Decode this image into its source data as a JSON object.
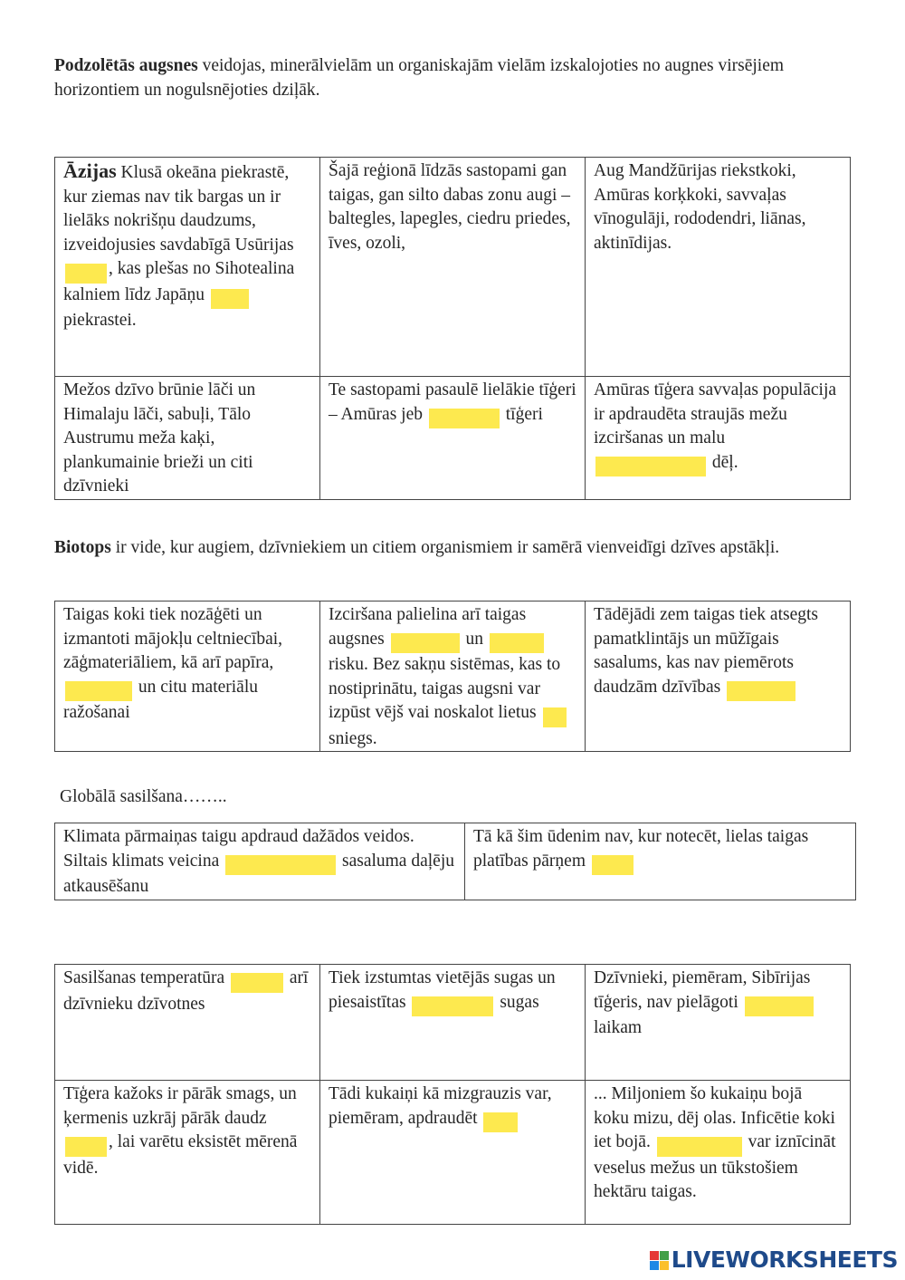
{
  "intro": {
    "bold": "Podzolētās augsnes",
    "text": " veidojas, minerālvielām un organiskajām vielām izskalojoties no augnes virsējiem horizontiem un nogulsnējoties dziļāk."
  },
  "table1": {
    "c1_bold": "Āzijas",
    "c1_a": " Klusā okeāna piekrastē, kur ziemas nav tik bargas un ir lielāks nokrišņu daudzums, izveidojusies savdabīgā Usūrijas",
    "c1_b": ", kas plešas no Sihotealina kalniem līdz Japāņu ",
    "c1_c": " piekrastei.",
    "c2": "Šajā reģionā līdzās sastopami gan taigas, gan silto dabas zonu augi – baltegles, lapegles, ciedru priedes, īves, ozoli,",
    "c3": "Aug Mandžūrijas riekstkoki, Amūras korķkoki, savvaļas vīnogulāji, rododendri, liānas, aktinīdijas.",
    "c4": " Mežos dzīvo brūnie lāči un Himalaju lāči, sabuļi, Tālo Austrumu meža kaķi, plankumainie brieži un citi dzīvnieki",
    "c5_a": " Te sastopami pasaulē lielākie tīģeri – Amūras jeb ",
    "c5_b": " tīģeri",
    "c6_a": "Amūras tīģera savvaļas populācija ir apdraudēta straujās mežu izciršanas un malu ",
    "c6_b": " dēļ."
  },
  "biotops": {
    "bold": "Biotops",
    "text": " ir vide, kur augiem, dzīvniekiem un citiem organismiem ir samērā vienveidīgi dzīves apstākļi."
  },
  "table2": {
    "c1_a": "Taigas koki tiek nozāģēti un izmantoti mājokļu celtniecībai, zāģmateriāliem, kā arī papīra, ",
    "c1_b": " un citu materiālu ražošanai",
    "c2_a": "Izciršana palielina arī taigas augsnes ",
    "c2_b": " un ",
    "c2_c": " risku. Bez sakņu sistēmas, kas to nostiprinātu, taigas augsni var izpūst vējš vai noskalot lietus ",
    "c2_d": " sniegs.",
    "c3_a": "Tādējādi zem taigas tiek atsegts pamatklintājs un mūžīgais sasalums, kas nav piemērots daudzām dzīvības "
  },
  "global": "Globālā sasilšana……..",
  "table3": {
    "c1_a": "Klimata pārmaiņas taigu apdraud dažādos veidos. Siltais klimats veicina ",
    "c1_b": " sasaluma daļēju atkausēšanu",
    "c2_a": "Tā kā šim ūdenim nav, kur notecēt, lielas taigas platības pārņem "
  },
  "table4": {
    "c1_b": " arī dzīvnieku dzīvotnes",
    "c1_a": "Sasilšanas temperatūra ",
    "c2_a": "Tiek izstumtas vietējās sugas un piesaistītas ",
    "c2_b": " sugas",
    "c3_a": "Dzīvnieki, piemēram, Sibīrijas tīģeris, nav pielāgoti ",
    "c3_b": " laikam",
    "c4_a": "Tīģera kažoks ir pārāk smags, un ķermenis uzkrāj pārāk daudz ",
    "c4_b": ", lai varētu eksistēt mērenā vidē.",
    "c5_a": "Tādi kukaiņi kā mizgrauzis var, piemēram, apdraudēt ",
    "c6_a": "... Miljoniem šo kukaiņu bojā koku mizu, dēj olas. Inficētie koki iet bojā. ",
    "c6_b": " var iznīcināt veselus mežus un tūkstošiem hektāru taigas."
  },
  "logo": {
    "text": "LIVEWORKSHEETS"
  },
  "colors": {
    "blank": "#fde94f",
    "logo": "#1e4a8a"
  }
}
